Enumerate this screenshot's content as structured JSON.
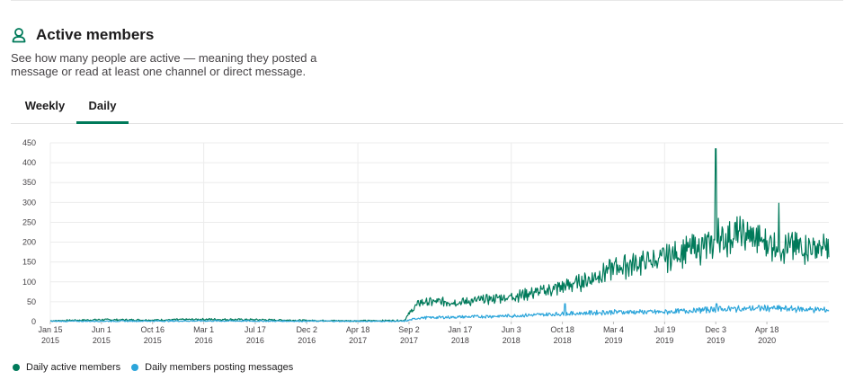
{
  "header": {
    "title": "Active members",
    "icon": "user-icon"
  },
  "description": "See how many people are active — meaning they posted a message or read at least one channel or direct message.",
  "tabs": [
    {
      "label": "Weekly",
      "selected": false
    },
    {
      "label": "Daily",
      "selected": true
    }
  ],
  "colors": {
    "active": "#007a5a",
    "posting": "#2ca5da",
    "accent": "#007a5a"
  },
  "legend": {
    "active_label": "Daily active members",
    "posting_label": "Daily members posting messages"
  },
  "chart_data": {
    "type": "line",
    "ylim": [
      0,
      450
    ],
    "yticks": [
      0,
      50,
      100,
      150,
      200,
      250,
      300,
      350,
      400,
      450
    ],
    "x_start": "2015-01-15",
    "x_end": "2020-10-01",
    "xticks": [
      {
        "date": "2015-01-15",
        "line1": "Jan 15",
        "line2": "2015"
      },
      {
        "date": "2015-06-01",
        "line1": "Jun 1",
        "line2": "2015"
      },
      {
        "date": "2015-10-16",
        "line1": "Oct 16",
        "line2": "2015"
      },
      {
        "date": "2016-03-01",
        "line1": "Mar 1",
        "line2": "2016"
      },
      {
        "date": "2016-07-17",
        "line1": "Jul 17",
        "line2": "2016"
      },
      {
        "date": "2016-12-02",
        "line1": "Dec 2",
        "line2": "2016"
      },
      {
        "date": "2017-04-18",
        "line1": "Apr 18",
        "line2": "2017"
      },
      {
        "date": "2017-09-02",
        "line1": "Sep 2",
        "line2": "2017"
      },
      {
        "date": "2018-01-17",
        "line1": "Jan 17",
        "line2": "2018"
      },
      {
        "date": "2018-06-03",
        "line1": "Jun 3",
        "line2": "2018"
      },
      {
        "date": "2018-10-18",
        "line1": "Oct 18",
        "line2": "2018"
      },
      {
        "date": "2019-03-04",
        "line1": "Mar 4",
        "line2": "2019"
      },
      {
        "date": "2019-07-19",
        "line1": "Jul 19",
        "line2": "2019"
      },
      {
        "date": "2019-12-03",
        "line1": "Dec 3",
        "line2": "2019"
      },
      {
        "date": "2020-04-18",
        "line1": "Apr 18",
        "line2": "2020"
      }
    ],
    "gridlines": [
      "2015-01-15",
      "2016-03-01",
      "2017-04-18",
      "2018-06-03",
      "2019-07-19"
    ],
    "series": [
      {
        "name": "Daily active members",
        "color": "#007a5a",
        "points": [
          [
            "2015-01-15",
            2
          ],
          [
            "2015-06-01",
            5
          ],
          [
            "2015-10-16",
            4
          ],
          [
            "2016-03-01",
            6
          ],
          [
            "2016-07-17",
            5
          ],
          [
            "2016-12-02",
            3
          ],
          [
            "2017-04-18",
            2
          ],
          [
            "2017-08-20",
            3
          ],
          [
            "2017-09-10",
            30
          ],
          [
            "2017-10-01",
            50
          ],
          [
            "2017-12-01",
            52
          ],
          [
            "2018-01-17",
            50
          ],
          [
            "2018-03-01",
            55
          ],
          [
            "2018-06-03",
            65
          ],
          [
            "2018-09-01",
            80
          ],
          [
            "2018-10-18",
            90
          ],
          [
            "2019-01-01",
            110
          ],
          [
            "2019-03-04",
            140
          ],
          [
            "2019-05-01",
            150
          ],
          [
            "2019-07-19",
            165
          ],
          [
            "2019-09-15",
            185
          ],
          [
            "2019-11-25",
            200
          ],
          [
            "2019-12-03",
            205
          ],
          [
            "2019-12-20",
            210
          ],
          [
            "2020-02-01",
            230
          ],
          [
            "2020-04-18",
            205
          ],
          [
            "2020-06-01",
            195
          ],
          [
            "2020-10-01",
            190
          ]
        ],
        "spikes": [
          [
            "2019-12-03",
            435
          ],
          [
            "2020-05-20",
            298
          ],
          [
            "2019-12-10",
            260
          ]
        ]
      },
      {
        "name": "Daily members posting messages",
        "color": "#2ca5da",
        "points": [
          [
            "2015-01-15",
            1
          ],
          [
            "2016-03-01",
            2
          ],
          [
            "2017-04-18",
            1
          ],
          [
            "2017-08-20",
            1
          ],
          [
            "2017-10-01",
            10
          ],
          [
            "2018-01-17",
            12
          ],
          [
            "2018-06-03",
            15
          ],
          [
            "2018-10-18",
            20
          ],
          [
            "2019-03-04",
            25
          ],
          [
            "2019-07-19",
            25
          ],
          [
            "2019-12-03",
            32
          ],
          [
            "2020-04-18",
            35
          ],
          [
            "2020-10-01",
            30
          ]
        ],
        "spikes": [
          [
            "2018-10-25",
            45
          ],
          [
            "2019-12-05",
            45
          ]
        ]
      }
    ]
  }
}
